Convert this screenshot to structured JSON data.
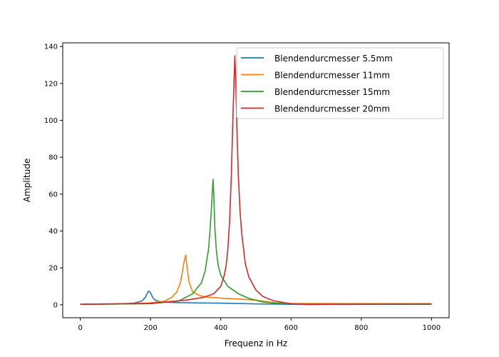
{
  "chart_data": {
    "type": "line",
    "title": "",
    "xlabel": "Frequenz in Hz",
    "ylabel": "Amplitude",
    "xlim": [
      -50,
      1050
    ],
    "ylim": [
      -7,
      142
    ],
    "x_ticks": [
      0,
      200,
      400,
      600,
      800,
      1000
    ],
    "y_ticks": [
      0,
      20,
      40,
      60,
      80,
      100,
      120,
      140
    ],
    "grid": false,
    "legend_position": "top-right",
    "series": [
      {
        "name": "Blendendurcmesser 5.5mm",
        "color": "#1f77b4",
        "x": [
          0,
          100,
          150,
          175,
          185,
          190,
          195,
          200,
          205,
          210,
          220,
          240,
          280,
          340,
          400,
          450,
          500,
          600,
          700,
          800,
          1000
        ],
        "y": [
          0.3,
          0.4,
          0.8,
          2.0,
          4.0,
          6.0,
          7.5,
          6.5,
          4.5,
          3.0,
          2.0,
          1.4,
          1.2,
          1.0,
          0.9,
          0.7,
          0.5,
          0.3,
          0.3,
          0.3,
          0.3
        ]
      },
      {
        "name": "Blendendurcmesser 11mm",
        "color": "#ff7f0e",
        "x": [
          0,
          150,
          200,
          240,
          260,
          275,
          285,
          290,
          295,
          300,
          305,
          310,
          320,
          340,
          360,
          400,
          450,
          500,
          550,
          600,
          800,
          1000
        ],
        "y": [
          0.3,
          0.5,
          1.0,
          2.0,
          4.0,
          7.0,
          12.0,
          17.0,
          23.0,
          27.0,
          19.0,
          12.0,
          7.0,
          5.0,
          4.2,
          3.6,
          3.2,
          2.5,
          1.2,
          0.7,
          0.6,
          0.6
        ]
      },
      {
        "name": "Blendendurcmesser 15mm",
        "color": "#2ca02c",
        "x": [
          0,
          200,
          280,
          320,
          345,
          355,
          365,
          370,
          375,
          378,
          380,
          383,
          388,
          393,
          400,
          420,
          450,
          480,
          520,
          560,
          600,
          800,
          1000
        ],
        "y": [
          0.3,
          0.6,
          2.0,
          6.0,
          12.0,
          18.0,
          30.0,
          42.0,
          58.0,
          68.0,
          60.0,
          42.0,
          28.0,
          21.0,
          16.0,
          10.0,
          6.0,
          3.5,
          1.5,
          0.8,
          0.5,
          0.4,
          0.4
        ]
      },
      {
        "name": "Blendendurcmesser 20mm",
        "color": "#d62728",
        "x": [
          0,
          200,
          300,
          350,
          380,
          400,
          410,
          415,
          420,
          425,
          430,
          435,
          440,
          443,
          446,
          450,
          455,
          460,
          470,
          480,
          500,
          520,
          550,
          600,
          650,
          800,
          1000
        ],
        "y": [
          0.3,
          0.8,
          2.5,
          4.0,
          6.0,
          10.0,
          16.0,
          21.0,
          30.0,
          45.0,
          70.0,
          105.0,
          135.0,
          118.0,
          95.0,
          70.0,
          50.0,
          38.0,
          22.0,
          15.0,
          8.0,
          4.5,
          2.2,
          0.6,
          0.2,
          0.4,
          0.5
        ]
      }
    ]
  }
}
